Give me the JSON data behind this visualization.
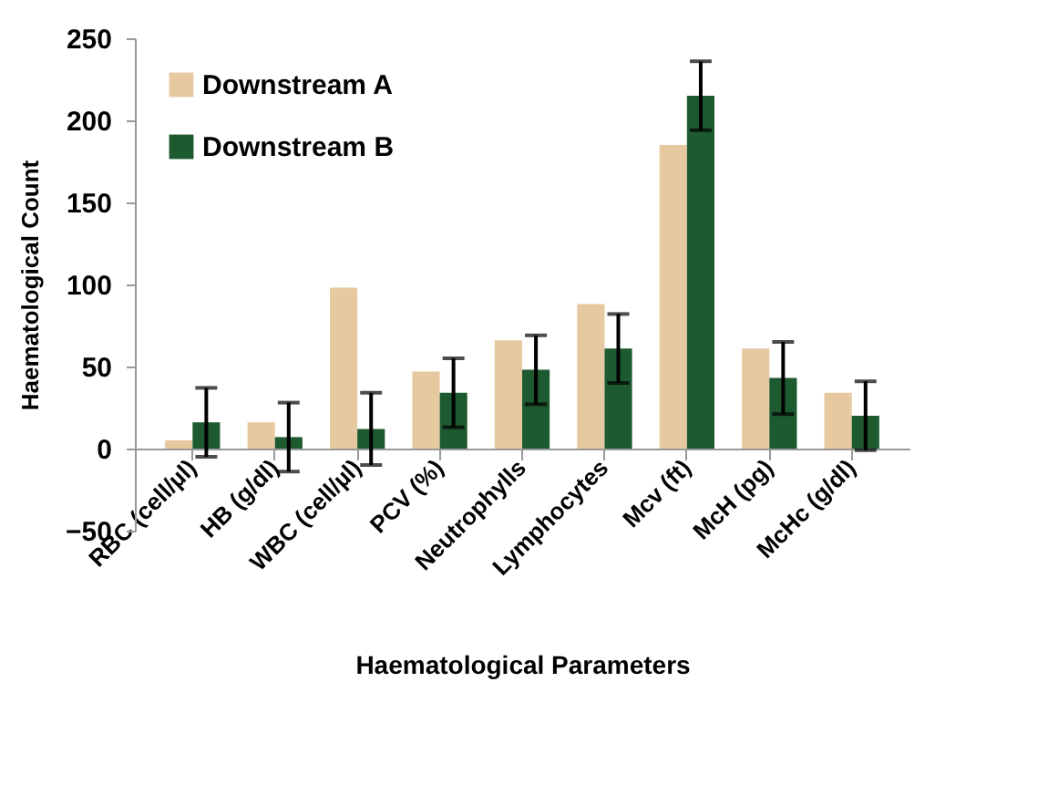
{
  "chart_data": {
    "type": "bar",
    "xlabel": "Haematological Parameters",
    "ylabel": "Haematological Count",
    "categories": [
      "RBC (cell/µl)",
      "HB (g/dl)",
      "WBC (cell/µl)",
      "PCV (%)",
      "Neutrophylls",
      "Lymphocytes",
      "Mcv (ft)",
      "McH (pg)",
      "McHc (g/dl)"
    ],
    "series": [
      {
        "name": "Downstream A",
        "color": "#e6c9a0",
        "values": [
          5,
          16,
          98,
          47,
          66,
          88,
          185,
          61,
          34
        ]
      },
      {
        "name": "Downstream B",
        "color": "#1e5a30",
        "values": [
          16,
          7,
          12,
          34,
          48,
          61,
          215,
          43,
          20
        ],
        "errors": [
          21,
          21,
          22,
          21,
          21,
          21,
          21,
          22,
          21
        ]
      }
    ],
    "ylim": [
      -50,
      250
    ],
    "yticks": [
      -50,
      0,
      50,
      100,
      150,
      200,
      250
    ],
    "grid": false,
    "legend": "top left"
  }
}
